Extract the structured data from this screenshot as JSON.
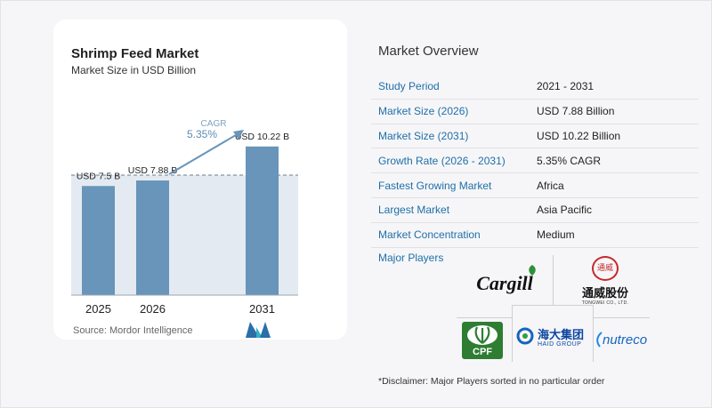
{
  "header": {
    "title": "Shrimp Feed Market",
    "subtitle": "Market Size in USD Billion"
  },
  "chart_data": {
    "type": "bar",
    "title": "Shrimp Feed Market",
    "subtitle": "Market Size in USD Billion",
    "categories": [
      "2025",
      "2026",
      "2031"
    ],
    "values": [
      7.5,
      7.88,
      10.22
    ],
    "value_labels": [
      "USD 7.5 B",
      "USD 7.88 B",
      "USD 10.22 B"
    ],
    "ylim": [
      0,
      11
    ],
    "cagr_label": "CAGR",
    "cagr_value": "5.35%",
    "grid": false,
    "bar_color": "#6895b9"
  },
  "source": "Source: Mordor Intelligence",
  "overview": {
    "title": "Market Overview",
    "rows": [
      {
        "label": "Study Period",
        "value": "2021 - 2031"
      },
      {
        "label": "Market Size (2026)",
        "value": "USD 7.88 Billion"
      },
      {
        "label": "Market Size (2031)",
        "value": "USD 10.22 Billion"
      },
      {
        "label": "Growth Rate (2026 - 2031)",
        "value": "5.35% CAGR"
      },
      {
        "label": "Fastest Growing Market",
        "value": "Africa"
      },
      {
        "label": "Largest Market",
        "value": "Asia Pacific"
      },
      {
        "label": "Market Concentration",
        "value": "Medium"
      }
    ]
  },
  "players": {
    "title": "Major Players",
    "cargill": "Cargill",
    "tongwei_cn": "通威股份",
    "tongwei_en": "TONGWEI CO., LTD.",
    "tongwei_seal": "通威",
    "cpf": "CPF",
    "haid_cn": "海大集团",
    "haid_en": "HAID GROUP",
    "nutreco": "nutreco"
  },
  "disclaimer": "*Disclaimer: Major Players sorted in no particular order",
  "colors": {
    "accent": "#1f6fa8",
    "bar": "#6895b9",
    "plot_bg": "#e4eaf1"
  }
}
